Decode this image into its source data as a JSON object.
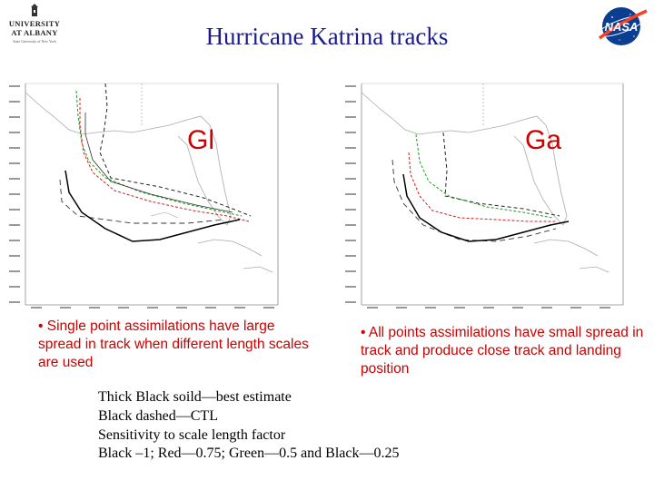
{
  "header": {
    "title": "Hurricane Katrina tracks",
    "university_logo_lines": [
      "UNIVERSITY",
      "AT ALBANY",
      "State University of New York"
    ],
    "nasa_logo_text": "NASA"
  },
  "panels": [
    {
      "label": "Gl",
      "bullet": "• Single point assimilations have large spread in track when different length scales are used"
    },
    {
      "label": "Ga",
      "bullet": "• All points assimilations have small spread in track and produce close track and landing position"
    }
  ],
  "notes": [
    "Thick Black soild—best estimate",
    "Black dashed—CTL",
    "Sensitivity to scale length factor",
    "Black –1; Red—0.75; Green—0.5 and Black—0.25"
  ],
  "colors": {
    "title": "#1a1a8c",
    "annotation": "#cc0000",
    "track_red": "#d02020",
    "track_green": "#1e9e1e"
  }
}
